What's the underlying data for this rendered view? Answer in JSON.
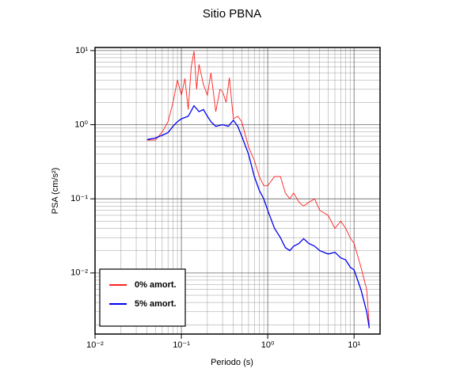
{
  "chart_data": {
    "type": "line",
    "title": "Sitio PBNA",
    "x_label": "Periodo (s)",
    "y_label": "PSA (cm/s²)",
    "log_x": true,
    "log_y": true,
    "grid": true,
    "legend": "lower left",
    "xlim": [
      0.01,
      20
    ],
    "ylim": [
      0.0015,
      11
    ],
    "xticks": [
      {
        "value": 0.01,
        "label": "10⁻²"
      },
      {
        "value": 0.1,
        "label": "10⁻¹"
      },
      {
        "value": 1,
        "label": "10⁰"
      },
      {
        "value": 10,
        "label": "10¹"
      }
    ],
    "yticks": [
      {
        "value": 0.01,
        "label": "10⁻²"
      },
      {
        "value": 0.1,
        "label": "10⁻¹"
      },
      {
        "value": 1,
        "label": "10⁰"
      },
      {
        "value": 10,
        "label": "10¹"
      }
    ],
    "series": [
      {
        "name": "0% amort.",
        "color": "#ff2020",
        "x": [
          0.04,
          0.05,
          0.06,
          0.07,
          0.08,
          0.09,
          0.1,
          0.11,
          0.12,
          0.13,
          0.14,
          0.15,
          0.16,
          0.18,
          0.2,
          0.22,
          0.25,
          0.28,
          0.3,
          0.33,
          0.36,
          0.4,
          0.45,
          0.5,
          0.6,
          0.7,
          0.8,
          0.9,
          1.0,
          1.2,
          1.4,
          1.6,
          1.8,
          2.0,
          2.3,
          2.6,
          3.0,
          3.5,
          4.0,
          5.0,
          6.0,
          7.0,
          8.0,
          9.0,
          10,
          12,
          14,
          15
        ],
        "values": [
          0.62,
          0.62,
          0.8,
          1.1,
          2.0,
          4.0,
          2.5,
          4.2,
          1.6,
          6.0,
          9.8,
          3.0,
          6.5,
          3.5,
          2.5,
          5.0,
          1.5,
          3.0,
          2.8,
          2.0,
          4.3,
          1.2,
          1.3,
          1.1,
          0.5,
          0.33,
          0.2,
          0.15,
          0.15,
          0.2,
          0.2,
          0.12,
          0.1,
          0.12,
          0.09,
          0.08,
          0.09,
          0.1,
          0.07,
          0.06,
          0.04,
          0.05,
          0.04,
          0.03,
          0.025,
          0.012,
          0.006,
          0.002
        ]
      },
      {
        "name": "5% amort.",
        "color": "#0000ee",
        "x": [
          0.04,
          0.05,
          0.06,
          0.07,
          0.08,
          0.09,
          0.1,
          0.12,
          0.14,
          0.16,
          0.18,
          0.2,
          0.22,
          0.25,
          0.3,
          0.35,
          0.4,
          0.45,
          0.5,
          0.6,
          0.7,
          0.8,
          0.9,
          1.0,
          1.2,
          1.4,
          1.6,
          1.8,
          2.0,
          2.3,
          2.6,
          3.0,
          3.5,
          4.0,
          5.0,
          6.0,
          7.0,
          8.0,
          9.0,
          10,
          12,
          14,
          15
        ],
        "values": [
          0.63,
          0.66,
          0.72,
          0.78,
          0.95,
          1.1,
          1.2,
          1.3,
          1.8,
          1.5,
          1.6,
          1.3,
          1.1,
          0.95,
          1.0,
          0.95,
          1.15,
          0.95,
          0.7,
          0.4,
          0.2,
          0.13,
          0.1,
          0.07,
          0.04,
          0.03,
          0.022,
          0.02,
          0.023,
          0.025,
          0.029,
          0.025,
          0.023,
          0.02,
          0.018,
          0.019,
          0.016,
          0.015,
          0.012,
          0.011,
          0.006,
          0.003,
          0.0018
        ]
      }
    ]
  }
}
